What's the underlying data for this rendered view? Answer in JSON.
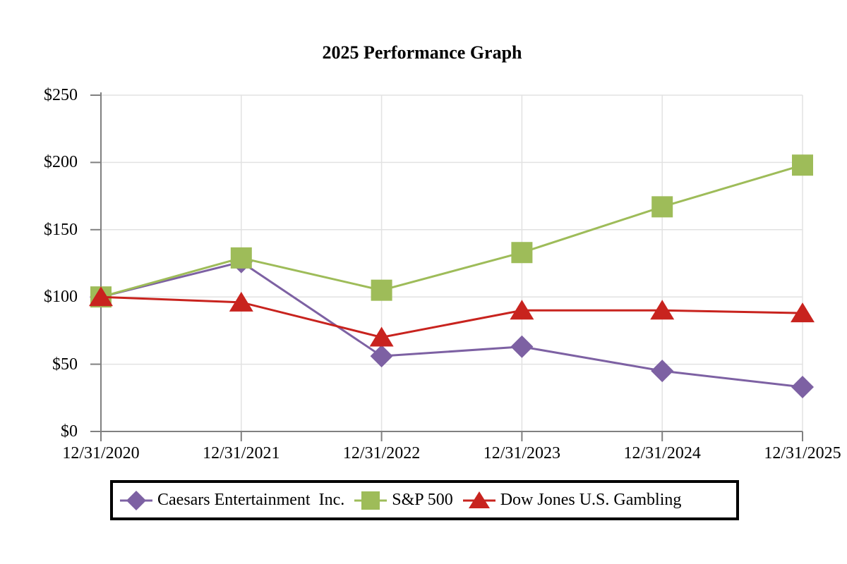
{
  "chart_data": {
    "type": "line",
    "title": "2025 Performance Graph",
    "categories": [
      "12/31/2020",
      "12/31/2021",
      "12/31/2022",
      "12/31/2023",
      "12/31/2024",
      "12/31/2025"
    ],
    "series": [
      {
        "name": "Caesars Entertainment  Inc.",
        "marker": "diamond",
        "color": "#7d61a3",
        "values": [
          100,
          126,
          56,
          63,
          45,
          33
        ]
      },
      {
        "name": "S&P 500",
        "marker": "square",
        "color": "#9ebc59",
        "values": [
          100,
          129,
          105,
          133,
          167,
          198
        ]
      },
      {
        "name": "Dow Jones U.S. Gambling",
        "marker": "triangle",
        "color": "#c8231e",
        "values": [
          100,
          96,
          70,
          90,
          90,
          88
        ]
      }
    ],
    "y_ticks": [
      {
        "label": "$250",
        "value": 250
      },
      {
        "label": "$200",
        "value": 200
      },
      {
        "label": "$150",
        "value": 150
      },
      {
        "label": "$100",
        "value": 100
      },
      {
        "label": "$50",
        "value": 50
      },
      {
        "label": "$0",
        "value": 0
      }
    ],
    "ylim": [
      0,
      250
    ],
    "grid": true,
    "legend_position": "bottom"
  },
  "colors": {
    "background": "#ffffff",
    "axis": "#808080",
    "gridline": "#e2e2e2",
    "text": "#000000",
    "legend_border": "#000000"
  }
}
